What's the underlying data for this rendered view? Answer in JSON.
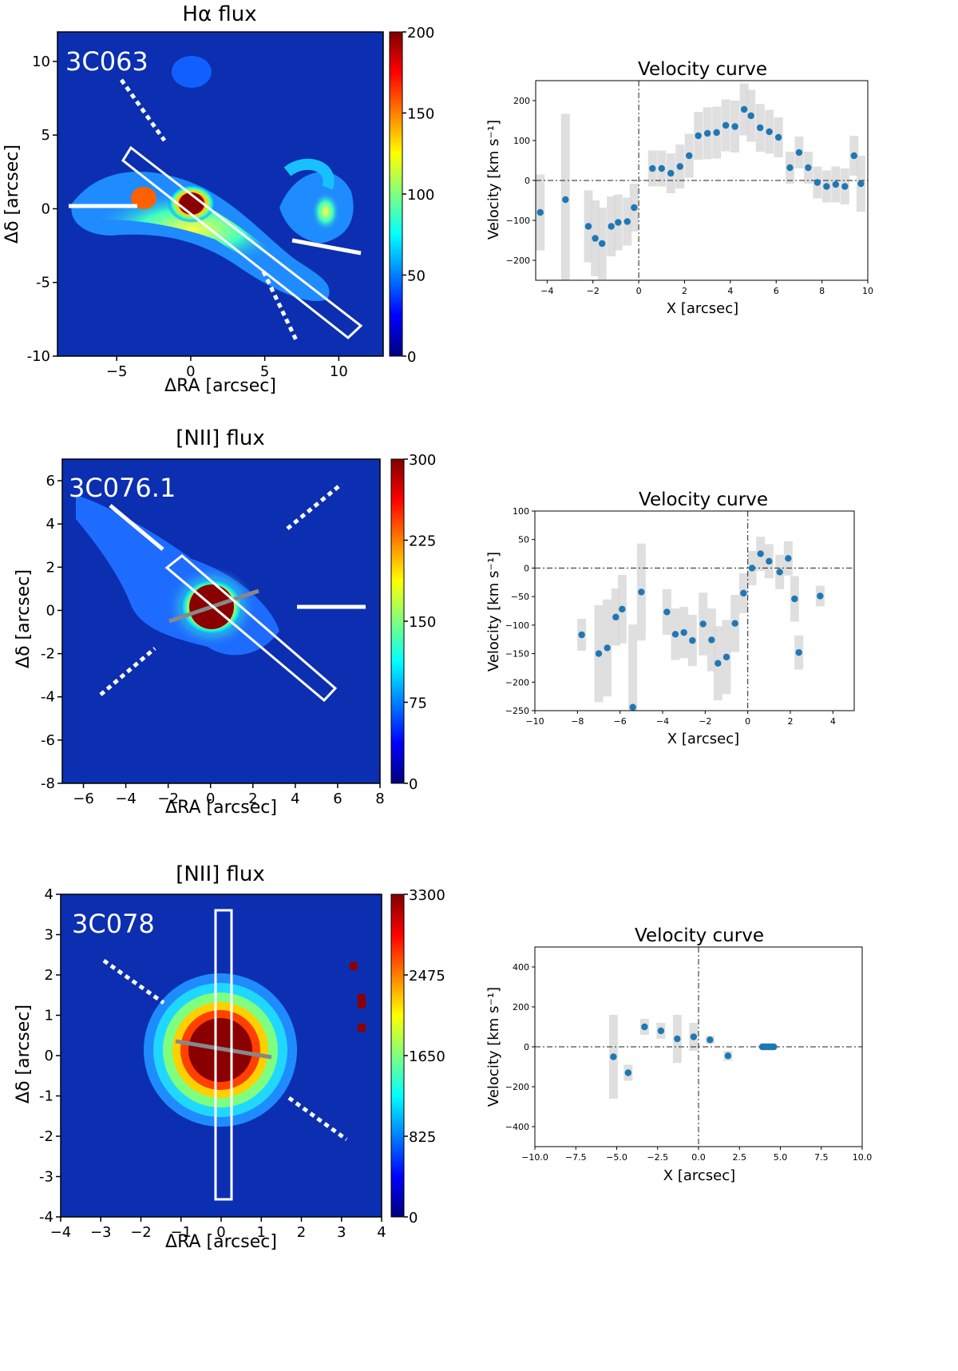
{
  "colors": {
    "map_bg": "#0b2fb0",
    "point": "#1f77b4",
    "err": "#d9d9d9",
    "dash": "#222222",
    "colorbar": [
      "#00007f",
      "#0000ff",
      "#007fff",
      "#00ffff",
      "#7fff7f",
      "#ffff00",
      "#ff7f00",
      "#ff0000",
      "#7f0000"
    ]
  },
  "panels": [
    {
      "map": {
        "title": "Hα flux",
        "label": "3C063",
        "xlabel": "ΔRA [arcsec]",
        "ylabel": "Δδ [arcsec]",
        "xticks": [
          -5,
          0,
          5,
          10
        ],
        "yticks": [
          10,
          5,
          0,
          -5,
          -10
        ],
        "xlim": [
          -9,
          13
        ],
        "ylim": [
          -10,
          12
        ],
        "cbar_ticks": [
          200,
          150,
          100,
          50,
          0
        ],
        "cbar_max": 200
      },
      "chart_data": {
        "type": "scatter",
        "title": "Velocity curve",
        "xlabel": "X [arcsec]",
        "ylabel": "Velocity [km s⁻¹]",
        "xlim": [
          -4.5,
          10
        ],
        "ylim": [
          -250,
          250
        ],
        "xticks": [
          -4,
          -2,
          0,
          2,
          4,
          6,
          8,
          10
        ],
        "yticks": [
          200,
          100,
          0,
          -100,
          -200
        ],
        "x": [
          -4.3,
          -3.2,
          -2.2,
          -1.9,
          -1.6,
          -1.2,
          -0.9,
          -0.5,
          -0.2,
          0.6,
          1.0,
          1.4,
          1.8,
          2.2,
          2.6,
          3.0,
          3.4,
          3.8,
          4.2,
          4.6,
          4.9,
          5.3,
          5.7,
          6.1,
          6.6,
          7.0,
          7.4,
          7.8,
          8.2,
          8.6,
          9.0,
          9.4,
          9.7
        ],
        "y": [
          -80,
          -48,
          -115,
          -145,
          -158,
          -115,
          -105,
          -103,
          -68,
          30,
          30,
          18,
          35,
          62,
          112,
          118,
          120,
          138,
          135,
          178,
          162,
          132,
          122,
          108,
          32,
          70,
          32,
          -5,
          -15,
          -10,
          -15,
          62,
          -8
        ],
        "err": [
          95,
          215,
          90,
          95,
          90,
          75,
          70,
          60,
          60,
          45,
          45,
          50,
          55,
          55,
          60,
          65,
          65,
          65,
          65,
          65,
          65,
          60,
          55,
          50,
          40,
          40,
          40,
          40,
          40,
          45,
          45,
          50,
          70
        ]
      }
    },
    {
      "map": {
        "title": "[NII] flux",
        "label": "3C076.1",
        "xlabel": "ΔRA [arcsec]",
        "ylabel": "Δδ [arcsec]",
        "xticks": [
          -6,
          -4,
          -2,
          0,
          2,
          4,
          6,
          8
        ],
        "yticks": [
          6,
          4,
          2,
          0,
          -2,
          -4,
          -6,
          -8
        ],
        "xlim": [
          -7,
          8
        ],
        "ylim": [
          -8,
          7
        ],
        "cbar_ticks": [
          300,
          225,
          150,
          75,
          0
        ],
        "cbar_max": 300
      },
      "chart_data": {
        "type": "scatter",
        "title": "Velocity curve",
        "xlabel": "X [arcsec]",
        "ylabel": "Velocity [km s⁻¹]",
        "xlim": [
          -10,
          5
        ],
        "ylim": [
          -250,
          100
        ],
        "xticks": [
          -10,
          -8,
          -6,
          -4,
          -2,
          0,
          2,
          4
        ],
        "yticks": [
          100,
          50,
          0,
          -50,
          -100,
          -150,
          -200,
          -250
        ],
        "x": [
          -7.8,
          -7.0,
          -6.6,
          -6.2,
          -5.9,
          -5.4,
          -5.0,
          -3.8,
          -3.4,
          -3.0,
          -2.6,
          -2.1,
          -1.7,
          -1.4,
          -1.0,
          -0.6,
          -0.2,
          0.2,
          0.6,
          1.0,
          1.5,
          1.9,
          2.2,
          2.4,
          3.4
        ],
        "y": [
          -117,
          -150,
          -140,
          -86,
          -72,
          -244,
          -42,
          -77,
          -116,
          -113,
          -127,
          -98,
          -126,
          -167,
          -156,
          -97,
          -44,
          0,
          25,
          12,
          -7,
          17,
          -54,
          -148,
          -49
        ],
        "err": [
          28,
          85,
          85,
          50,
          60,
          145,
          85,
          40,
          45,
          45,
          45,
          55,
          55,
          65,
          65,
          50,
          35,
          30,
          30,
          30,
          30,
          30,
          40,
          30,
          18
        ]
      }
    },
    {
      "map": {
        "title": "[NII] flux",
        "label": "3C078",
        "xlabel": "ΔRA [arcsec]",
        "ylabel": "Δδ [arcsec]",
        "xticks": [
          -4,
          -3,
          -2,
          -1,
          0,
          1,
          2,
          3,
          4
        ],
        "yticks": [
          4,
          3,
          2,
          1,
          0,
          -1,
          -2,
          -3,
          -4
        ],
        "xlim": [
          -4,
          4
        ],
        "ylim": [
          -4,
          4
        ],
        "cbar_ticks": [
          3300,
          2475,
          1650,
          825,
          0
        ],
        "cbar_max": 3300
      },
      "chart_data": {
        "type": "scatter",
        "title": "Velocity curve",
        "xlabel": "X [arcsec]",
        "ylabel": "Velocity [km s⁻¹]",
        "xlim": [
          -10,
          10
        ],
        "ylim": [
          -500,
          500
        ],
        "xticks": [
          -10.0,
          -7.5,
          -5.0,
          -2.5,
          0.0,
          2.5,
          5.0,
          7.5,
          10.0
        ],
        "yticks": [
          400,
          200,
          0,
          -200,
          -400
        ],
        "x": [
          -5.2,
          -4.3,
          -3.3,
          -2.3,
          -1.3,
          -0.3,
          0.7,
          1.8,
          3.9,
          4.0,
          4.1,
          4.2,
          4.3,
          4.4,
          4.5,
          4.6
        ],
        "y": [
          -50,
          -130,
          100,
          80,
          40,
          50,
          35,
          -45,
          0,
          0,
          0,
          0,
          0,
          0,
          0,
          0
        ],
        "err": [
          210,
          40,
          40,
          40,
          120,
          70,
          20,
          25,
          0,
          0,
          0,
          0,
          0,
          0,
          0,
          0
        ]
      }
    }
  ]
}
